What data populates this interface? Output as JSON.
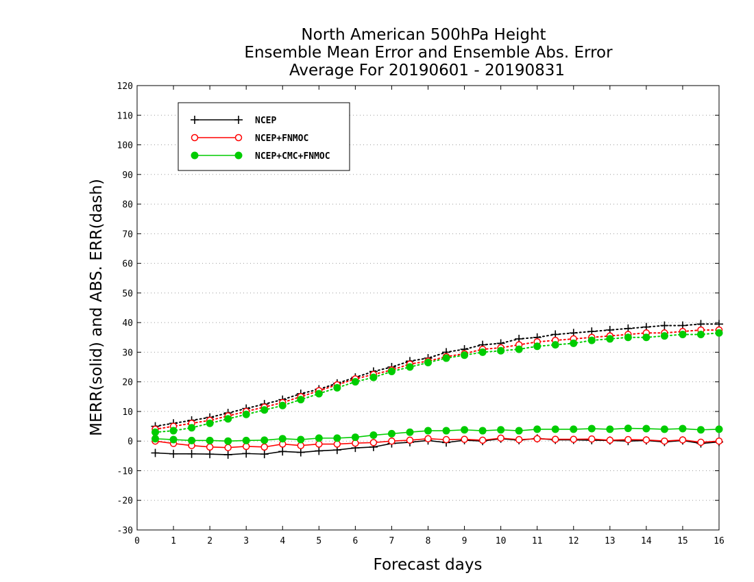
{
  "chart_data": {
    "type": "line",
    "title": [
      "North American 500hPa Height",
      "Ensemble Mean Error and Ensemble Abs. Error",
      "Average For 20190601 - 20190831"
    ],
    "xlabel": "Forecast days",
    "ylabel": "MERR(solid) and ABS. ERR(dash)",
    "xlim": [
      0,
      16
    ],
    "ylim": [
      -30,
      120
    ],
    "xticks": [
      "0",
      "1",
      "2",
      "3",
      "4",
      "5",
      "6",
      "7",
      "8",
      "9",
      "10",
      "11",
      "12",
      "13",
      "14",
      "15",
      "16"
    ],
    "yticks": [
      "-30",
      "-20",
      "-10",
      "0",
      "10",
      "20",
      "30",
      "40",
      "50",
      "60",
      "70",
      "80",
      "90",
      "100",
      "110",
      "120"
    ],
    "grid": "horizontal dotted",
    "legend_position": "top-left",
    "x": [
      0.5,
      1,
      1.5,
      2,
      2.5,
      3,
      3.5,
      4,
      4.5,
      5,
      5.5,
      6,
      6.5,
      7,
      7.5,
      8,
      8.5,
      9,
      9.5,
      10,
      10.5,
      11,
      11.5,
      12,
      12.5,
      13,
      13.5,
      14,
      14.5,
      15,
      15.5,
      16
    ],
    "series": [
      {
        "name": "NCEP",
        "color": "#000000",
        "marker": "plus",
        "merr": [
          -4,
          -4.3,
          -4.3,
          -4.4,
          -4.6,
          -4.2,
          -4.4,
          -3.5,
          -3.8,
          -3.3,
          -3,
          -2.3,
          -2,
          -0.8,
          -0.4,
          0.2,
          -0.5,
          0.3,
          0,
          0.8,
          0.3,
          0.9,
          0.4,
          0.4,
          0.3,
          0.2,
          0,
          0.2,
          -0.3,
          0.2,
          -0.8,
          -0.3
        ],
        "abs_err": [
          5,
          6,
          7,
          8,
          9.5,
          11,
          12.5,
          14,
          16,
          17.5,
          19.5,
          21.5,
          23.5,
          25,
          27,
          28,
          30,
          31,
          32.5,
          33,
          34.5,
          35,
          36,
          36.5,
          37,
          37.5,
          38,
          38.5,
          39,
          39,
          39.5,
          39.5
        ]
      },
      {
        "name": "NCEP+FNMOC",
        "color": "#ff0000",
        "marker": "open-circle",
        "merr": [
          0,
          -0.8,
          -1.5,
          -2,
          -2.2,
          -1.8,
          -2,
          -1,
          -1.5,
          -1,
          -1,
          -0.7,
          -0.5,
          0,
          0.3,
          0.8,
          0.5,
          0.6,
          0.3,
          1,
          0.5,
          0.8,
          0.6,
          0.6,
          0.7,
          0.3,
          0.5,
          0.4,
          0,
          0.4,
          -0.4,
          0
        ],
        "abs_err": [
          4,
          5,
          6,
          7,
          8.5,
          10,
          11.5,
          13,
          15,
          17,
          19,
          21,
          22.5,
          24,
          26,
          27,
          28.5,
          29.5,
          31,
          31.5,
          32.5,
          33.5,
          34,
          34.5,
          35,
          35.5,
          36,
          36.5,
          36.5,
          37,
          37.5,
          37.5
        ]
      },
      {
        "name": "NCEP+CMC+FNMOC",
        "color": "#00cc00",
        "marker": "filled-circle",
        "merr": [
          0.8,
          0.5,
          0.2,
          0.2,
          0,
          0.2,
          0.3,
          0.8,
          0.5,
          1,
          1,
          1.3,
          2,
          2.5,
          3,
          3.5,
          3.5,
          3.8,
          3.5,
          3.8,
          3.5,
          4,
          4,
          4,
          4.2,
          4,
          4.3,
          4.2,
          4,
          4.2,
          3.8,
          4
        ],
        "abs_err": [
          3,
          3.5,
          4.5,
          6,
          7.5,
          9,
          10.5,
          12,
          14,
          16,
          18,
          20,
          21.5,
          23.5,
          25,
          26.5,
          28,
          29,
          30,
          30.5,
          31,
          32,
          32.5,
          33,
          34,
          34.5,
          35,
          35,
          35.5,
          36,
          36,
          36.5
        ]
      }
    ]
  }
}
